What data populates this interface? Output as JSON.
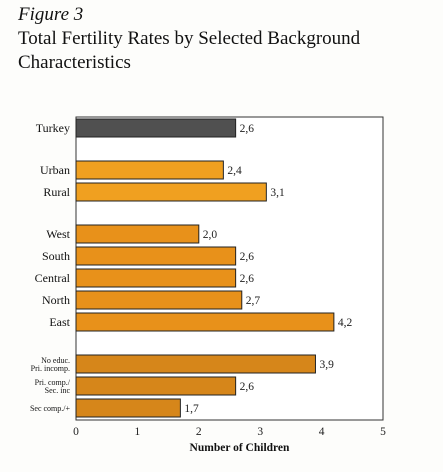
{
  "figure": {
    "label": "Figure 3",
    "title": "Total Fertility Rates by Selected Background Characteristics"
  },
  "chart_data": {
    "type": "bar",
    "orientation": "horizontal",
    "title": "Total Fertility Rates by Selected Background Characteristics",
    "xlabel": "Number of Children",
    "ylabel": "",
    "xlim": [
      0,
      5
    ],
    "xticks": [
      "0",
      "1",
      "2",
      "3",
      "4",
      "5"
    ],
    "grid": false,
    "decimal_separator": ",",
    "groups": [
      {
        "name": "total",
        "categories": [
          "Turkey"
        ],
        "values": [
          2.6
        ],
        "labels": [
          "2,6"
        ],
        "color": "#505050"
      },
      {
        "name": "residence",
        "categories": [
          "Urban",
          "Rural"
        ],
        "values": [
          2.4,
          3.1
        ],
        "labels": [
          "2,4",
          "3,1"
        ],
        "color": "#f0a020"
      },
      {
        "name": "region",
        "categories": [
          "West",
          "South",
          "Central",
          "North",
          "East"
        ],
        "values": [
          2.0,
          2.6,
          2.6,
          2.7,
          4.2
        ],
        "labels": [
          "2,0",
          "2,6",
          "2,6",
          "2,7",
          "4,2"
        ],
        "color": "#e8911a"
      },
      {
        "name": "education",
        "categories": [
          [
            "No educ.",
            "Pri. incomp."
          ],
          [
            "Pri. comp./",
            "Sec. inc"
          ],
          [
            "Sec comp./+"
          ]
        ],
        "values": [
          3.9,
          2.6,
          1.7
        ],
        "labels": [
          "3,9",
          "2,6",
          "1,7"
        ],
        "color": "#d6861a"
      }
    ]
  }
}
